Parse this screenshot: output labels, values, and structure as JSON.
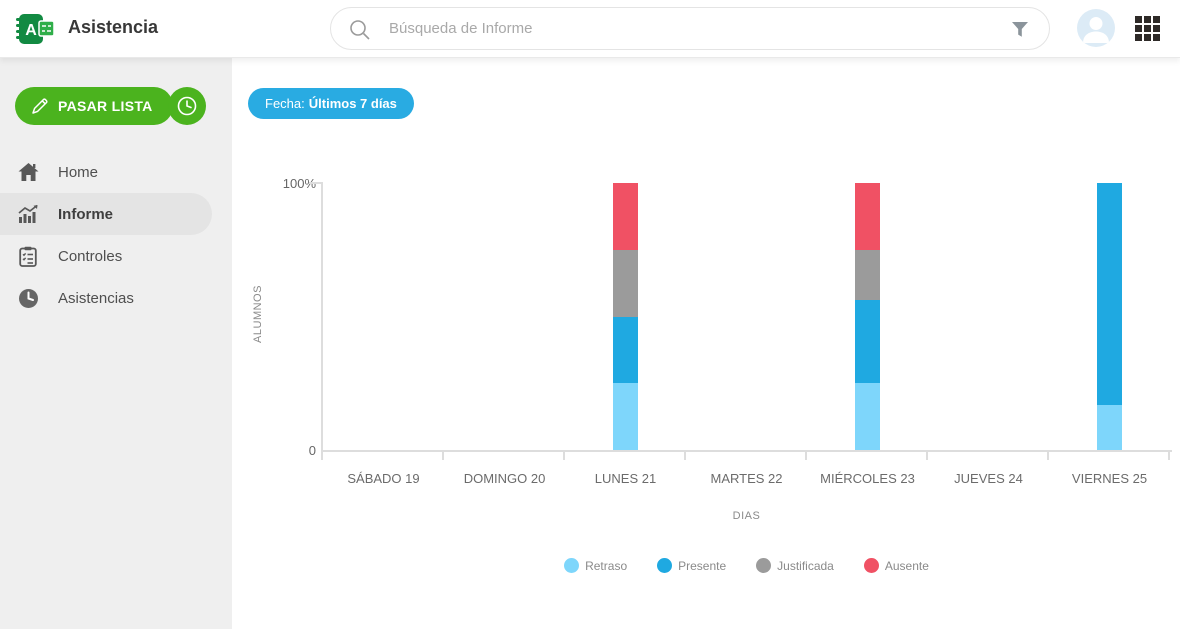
{
  "app": {
    "title": "Asistencia"
  },
  "header": {
    "search": {
      "placeholder": "Búsqueda de Informe"
    },
    "icon_names": [
      "notebook-logo-icon",
      "search-icon",
      "filter-funnel-icon",
      "user-avatar",
      "apps-grid-icon"
    ]
  },
  "sidebar": {
    "primary_action_label": "PASAR LISTA",
    "icon_names": [
      "pencil-icon",
      "clock-icon",
      "home-icon",
      "bar-chart-icon",
      "clipboard-icon",
      "clock-filled-icon"
    ],
    "items": [
      {
        "label": "Home",
        "icon": "home-icon",
        "active": false
      },
      {
        "label": "Informe",
        "icon": "bar-chart-icon",
        "active": true
      },
      {
        "label": "Controles",
        "icon": "clipboard-icon",
        "active": false
      },
      {
        "label": "Asistencias",
        "icon": "clock-filled-icon",
        "active": false
      }
    ]
  },
  "filters": {
    "date_chip": {
      "prefix": "Fecha:",
      "value": "Últimos 7 días",
      "color": "#29abe2"
    }
  },
  "colors": {
    "brand_green": "#4bb31e",
    "chip_blue": "#29abe2",
    "sidebar_bg": "#efefef",
    "active_item_bg": "#e4e4e4"
  },
  "chart_data": {
    "type": "bar",
    "stacked": true,
    "categories": [
      "SÁBADO 19",
      "DOMINGO 20",
      "LUNES 21",
      "MARTES 22",
      "MIÉRCOLES 23",
      "JUEVES 24",
      "VIERNES 25"
    ],
    "series": [
      {
        "name": "Retraso",
        "color": "#7ed6fb",
        "values": [
          0,
          0,
          25,
          0,
          25,
          0,
          17
        ]
      },
      {
        "name": "Presente",
        "color": "#1fa9e1",
        "values": [
          0,
          0,
          25,
          0,
          31,
          0,
          83
        ]
      },
      {
        "name": "Justificada",
        "color": "#9b9b9b",
        "values": [
          0,
          0,
          25,
          0,
          19,
          0,
          0
        ]
      },
      {
        "name": "Ausente",
        "color": "#f05164",
        "values": [
          0,
          0,
          25,
          0,
          25,
          0,
          0
        ]
      }
    ],
    "xlabel": "DIAS",
    "ylabel": "ALUMNOS",
    "ylim": [
      0,
      100
    ],
    "y_ticks": [
      "100%",
      "0"
    ],
    "grid": false,
    "legend_position": "bottom"
  }
}
